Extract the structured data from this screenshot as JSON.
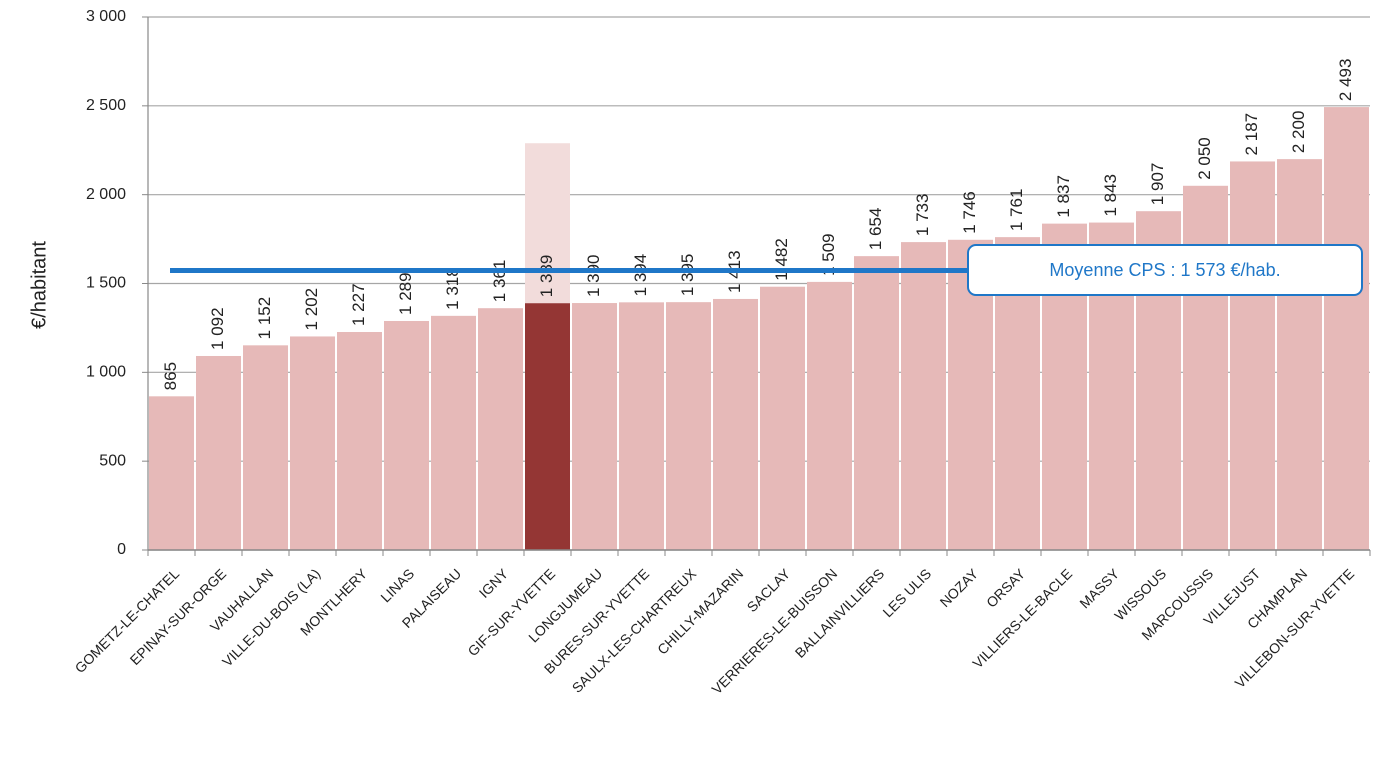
{
  "chart_data": {
    "type": "bar",
    "y_label": "€/habitant",
    "categories": [
      "GOMETZ-LE-CHATEL",
      "EPINAY-SUR-ORGE",
      "VAUHALLAN",
      "VILLE-DU-BOIS (LA)",
      "MONTLHERY",
      "LINAS",
      "PALAISEAU",
      "IGNY",
      "GIF-SUR-YVETTE",
      "LONGJUMEAU",
      "BURES-SUR-YVETTE",
      "SAULX-LES-CHARTREUX",
      "CHILLY-MAZARIN",
      "SACLAY",
      "VERRIERES-LE-BUISSON",
      "BALLAINVILLIERS",
      "LES ULIS",
      "NOZAY",
      "ORSAY",
      "VILLIERS-LE-BACLE",
      "MASSY",
      "WISSOUS",
      "MARCOUSSIS",
      "VILLEJUST",
      "CHAMPLAN",
      "VILLEBON-SUR-YVETTE"
    ],
    "values": [
      865,
      1092,
      1152,
      1202,
      1227,
      1289,
      1318,
      1361,
      1389,
      1390,
      1394,
      1395,
      1413,
      1482,
      1509,
      1654,
      1733,
      1746,
      1761,
      1837,
      1843,
      1907,
      2050,
      2187,
      2200,
      2493
    ],
    "value_labels": [
      "865",
      "1 092",
      "1 152",
      "1 202",
      "1 227",
      "1 289",
      "1 318",
      "1 361",
      "1 389",
      "1 390",
      "1 394",
      "1 395",
      "1 413",
      "1 482",
      "1 509",
      "1 654",
      "1 733",
      "1 746",
      "1 761",
      "1 837",
      "1 843",
      "1 907",
      "2 050",
      "2 187",
      "2 200",
      "2 493"
    ],
    "color": "#e6b9b8",
    "highlight": "GIF-SUR-YVETTE",
    "highlight_color": "#943634",
    "average": 1573,
    "average_label": "Moyenne CPS : 1 573 €/hab.",
    "average_color": "#1f77c8",
    "ylim": [
      0,
      3000
    ],
    "yticks": [
      0,
      500,
      {
        "value": 1000,
        "label": "1 000"
      },
      {
        "value": 1500,
        "label": "1 500"
      },
      {
        "value": 2000,
        "label": "2 000"
      },
      {
        "value": 2500,
        "label": "2 500"
      },
      {
        "value": 3000,
        "label": "3 000"
      }
    ],
    "grid": true
  }
}
